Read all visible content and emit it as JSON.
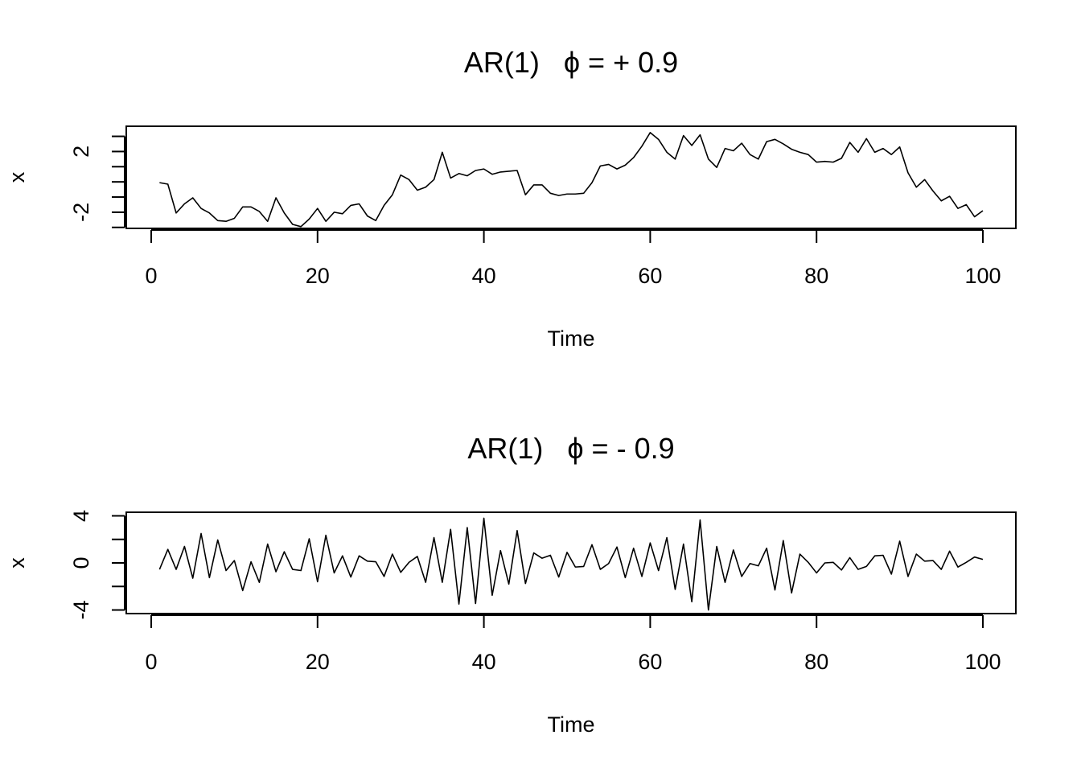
{
  "chart_data": [
    {
      "type": "line",
      "title": "AR(1)   ϕ = + 0.9",
      "xlabel": "Time",
      "ylabel": "x",
      "xlim": [
        0,
        100
      ],
      "ylim": [
        -2.8,
        3.4
      ],
      "xticks": [
        0,
        20,
        40,
        60,
        80,
        100
      ],
      "yticks": [
        -3,
        -2,
        -1,
        0,
        1,
        2,
        3
      ],
      "ytick_labels": [
        {
          "value": -2,
          "label": "-2"
        },
        {
          "value": 2,
          "label": "2"
        }
      ],
      "grid": false,
      "x": [
        1,
        2,
        3,
        4,
        5,
        6,
        7,
        8,
        9,
        10,
        11,
        12,
        13,
        14,
        15,
        16,
        17,
        18,
        19,
        20,
        21,
        22,
        23,
        24,
        25,
        26,
        27,
        28,
        29,
        30,
        31,
        32,
        33,
        34,
        35,
        36,
        37,
        38,
        39,
        40,
        41,
        42,
        43,
        44,
        45,
        46,
        47,
        48,
        49,
        50,
        51,
        52,
        53,
        54,
        55,
        56,
        57,
        58,
        59,
        60,
        61,
        62,
        63,
        64,
        65,
        66,
        67,
        68,
        69,
        70,
        71,
        72,
        73,
        74,
        75,
        76,
        77,
        78,
        79,
        80,
        81,
        82,
        83,
        84,
        85,
        86,
        87,
        88,
        89,
        90,
        91,
        92,
        93,
        94,
        95,
        96,
        97,
        98,
        99,
        100
      ],
      "values": [
        -0.05,
        -0.15,
        -2.05,
        -1.45,
        -1.05,
        -1.75,
        -2.05,
        -2.55,
        -2.6,
        -2.4,
        -1.65,
        -1.65,
        -1.95,
        -2.6,
        -1.05,
        -2.05,
        -2.8,
        -2.95,
        -2.45,
        -1.75,
        -2.6,
        -2.0,
        -2.1,
        -1.55,
        -1.45,
        -2.25,
        -2.55,
        -1.55,
        -0.85,
        0.45,
        0.15,
        -0.55,
        -0.35,
        0.15,
        1.95,
        0.25,
        0.55,
        0.4,
        0.75,
        0.85,
        0.5,
        0.65,
        0.7,
        0.75,
        -0.85,
        -0.2,
        -0.2,
        -0.75,
        -0.9,
        -0.8,
        -0.8,
        -0.75,
        -0.05,
        1.05,
        1.15,
        0.85,
        1.1,
        1.6,
        2.35,
        3.25,
        2.8,
        1.95,
        1.5,
        3.05,
        2.4,
        3.1,
        1.5,
        0.95,
        2.2,
        2.05,
        2.55,
        1.8,
        1.5,
        2.65,
        2.8,
        2.5,
        2.15,
        1.95,
        1.8,
        1.3,
        1.35,
        1.3,
        1.55,
        2.6,
        1.95,
        2.85,
        1.95,
        2.2,
        1.8,
        2.3,
        0.6,
        -0.35,
        0.15,
        -0.6,
        -1.25,
        -0.95,
        -1.75,
        -1.5,
        -2.3,
        -1.9
      ]
    },
    {
      "type": "line",
      "title": "AR(1)   ϕ = - 0.9",
      "xlabel": "Time",
      "ylabel": "x",
      "xlim": [
        0,
        100
      ],
      "ylim": [
        -4.1,
        4.1
      ],
      "xticks": [
        0,
        20,
        40,
        60,
        80,
        100
      ],
      "yticks": [
        -4,
        -2,
        0,
        2,
        4
      ],
      "ytick_labels": [
        {
          "value": -4,
          "label": "-4"
        },
        {
          "value": 0,
          "label": "0"
        },
        {
          "value": 4,
          "label": "4"
        }
      ],
      "grid": false,
      "x": [
        1,
        2,
        3,
        4,
        5,
        6,
        7,
        8,
        9,
        10,
        11,
        12,
        13,
        14,
        15,
        16,
        17,
        18,
        19,
        20,
        21,
        22,
        23,
        24,
        25,
        26,
        27,
        28,
        29,
        30,
        31,
        32,
        33,
        34,
        35,
        36,
        37,
        38,
        39,
        40,
        41,
        42,
        43,
        44,
        45,
        46,
        47,
        48,
        49,
        50,
        51,
        52,
        53,
        54,
        55,
        56,
        57,
        58,
        59,
        60,
        61,
        62,
        63,
        64,
        65,
        66,
        67,
        68,
        69,
        70,
        71,
        72,
        73,
        74,
        75,
        76,
        77,
        78,
        79,
        80,
        81,
        82,
        83,
        84,
        85,
        86,
        87,
        88,
        89,
        90,
        91,
        92,
        93,
        94,
        95,
        96,
        97,
        98,
        99,
        100
      ],
      "values": [
        -0.55,
        1.15,
        -0.55,
        1.4,
        -1.3,
        2.5,
        -1.25,
        1.95,
        -0.65,
        0.2,
        -2.35,
        0.1,
        -1.65,
        1.6,
        -0.75,
        0.95,
        -0.55,
        -0.65,
        2.05,
        -1.6,
        2.35,
        -0.85,
        0.6,
        -1.2,
        0.6,
        0.15,
        0.1,
        -1.15,
        0.75,
        -0.8,
        0.05,
        0.55,
        -1.65,
        2.15,
        -1.65,
        2.85,
        -3.5,
        3.0,
        -3.45,
        3.8,
        -2.75,
        1.05,
        -1.8,
        2.75,
        -1.75,
        0.85,
        0.4,
        0.65,
        -1.2,
        0.9,
        -0.35,
        -0.3,
        1.55,
        -0.55,
        -0.05,
        1.35,
        -1.25,
        1.25,
        -1.15,
        1.7,
        -0.65,
        2.15,
        -2.25,
        1.6,
        -3.3,
        3.65,
        -4.0,
        1.4,
        -1.65,
        1.1,
        -1.15,
        -0.05,
        -0.25,
        1.25,
        -2.3,
        1.9,
        -2.55,
        0.75,
        0.05,
        -0.85,
        0.0,
        0.05,
        -0.6,
        0.45,
        -0.55,
        -0.3,
        0.6,
        0.65,
        -0.95,
        1.85,
        -1.15,
        0.75,
        0.15,
        0.2,
        -0.55,
        1.0,
        -0.35,
        0.05,
        0.5,
        0.3
      ]
    }
  ]
}
